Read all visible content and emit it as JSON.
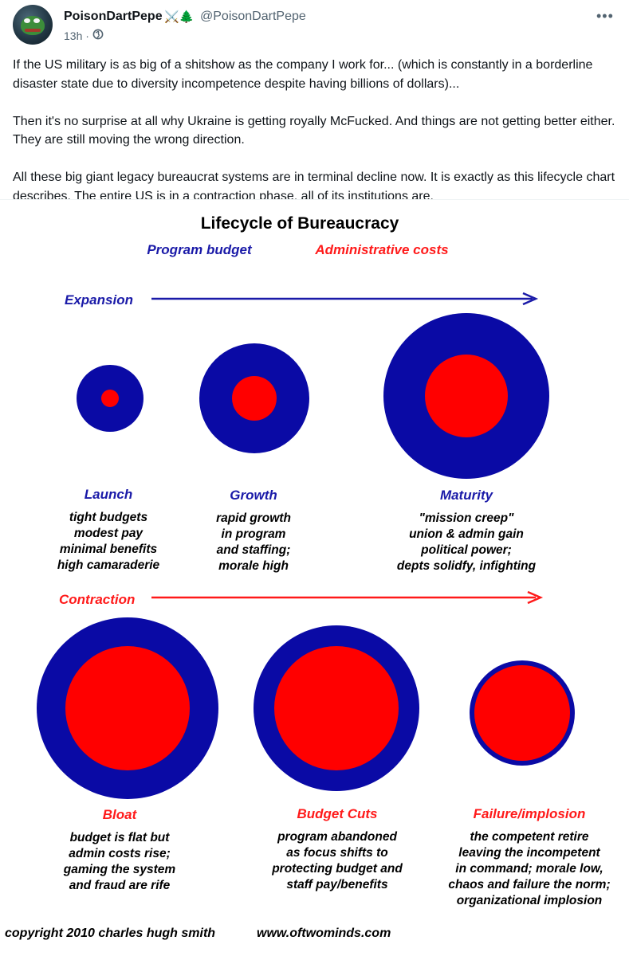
{
  "post": {
    "display_name": "PoisonDartPepe",
    "badges": "⚔️🌲",
    "handle": "@PoisonDartPepe",
    "time": "13h ·",
    "paragraphs": [
      "If the US military is as big of a shitshow as the company I work for... (which is constantly in a borderline disaster state due to diversity incompetence despite having billions of dollars)...",
      "Then it's no surprise at all why Ukraine is getting royally McFucked. And things are not getting better either. They are still moving the wrong direction.",
      "All these big giant legacy bureaucrat systems are in terminal decline now. It is exactly as this lifecycle chart describes. The entire US is in a contraction phase, all of its institutions are."
    ],
    "more_label": "•••",
    "icons": {
      "avatar": "pepe-frog-avatar",
      "privacy": "globe-icon",
      "more": "more-icon"
    }
  },
  "chart": {
    "title": "Lifecycle of Bureaucracy",
    "legend": [
      {
        "label": "Program budget",
        "color": "#1a1aa8"
      },
      {
        "label": "Administrative costs",
        "color": "#ff1a1a"
      }
    ],
    "phases": [
      {
        "label": "Expansion",
        "color": "#1a1aa8"
      },
      {
        "label": "Contraction",
        "color": "#ff1a1a"
      }
    ],
    "colors": {
      "program": "#0a0aa5",
      "admin": "#ff0000"
    },
    "stages": [
      {
        "name": "Launch",
        "name_color": "#1a1aa8",
        "lines": [
          "tight budgets",
          "modest pay",
          "minimal benefits",
          "high camaraderie"
        ]
      },
      {
        "name": "Growth",
        "name_color": "#1a1aa8",
        "lines": [
          "rapid growth",
          "in program",
          "and staffing;",
          "morale high"
        ]
      },
      {
        "name": "Maturity",
        "name_color": "#1a1aa8",
        "lines": [
          "\"mission creep\"",
          "union & admin gain",
          "political power;",
          "depts solidfy, infighting"
        ]
      },
      {
        "name": "Bloat",
        "name_color": "#ff1a1a",
        "lines": [
          "budget is flat but",
          "admin costs rise;",
          "gaming the system",
          "and fraud are rife"
        ]
      },
      {
        "name": "Budget Cuts",
        "name_color": "#ff1a1a",
        "lines": [
          "program abandoned",
          "as focus shifts to",
          "protecting budget and",
          "staff pay/benefits"
        ]
      },
      {
        "name": "Failure/implosion",
        "name_color": "#ff1a1a",
        "lines": [
          "the competent retire",
          "leaving the incompetent",
          "in command; morale low,",
          "chaos and failure the norm;",
          "organizational implosion"
        ]
      }
    ],
    "copyright": "copyright 2010  charles hugh smith",
    "website": "www.oftwominds.com"
  }
}
